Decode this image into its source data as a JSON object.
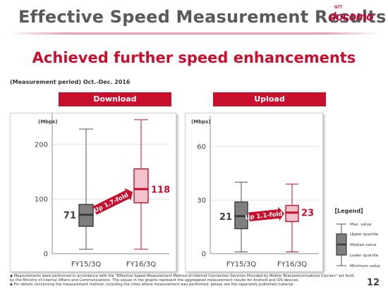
{
  "slide": {
    "title": "Effective Speed Measurement Results",
    "logo_text": "docomo",
    "logo_prefix": "NTT",
    "headline": "Achieved further speed enhancements",
    "period": "(Measurement period) Oct.-Dec. 2016",
    "page_number": "12",
    "footnotes": [
      "◆  Measurements were performed in accordance with the \"Effective Speed Measurement Method of Internet Connection Services Provided by Mobile Telecommunications Carriers\" set forth",
      "     by the Ministry of Internal Affairs and Communications. The values in the graphs represent the aggregated measurement results for Android and iOS devices.",
      "◆  For details concerning the measurement method, including the cities where measurement was performed, please see the separately published material."
    ]
  },
  "legend": {
    "title": "【Legend】",
    "items": [
      "Max. value",
      "Upper quartile",
      "Median value",
      "Lower quartile",
      "Minimum value"
    ]
  },
  "colors": {
    "accent": "#c8102e",
    "grey_box": "#7f7f7f",
    "pink_box": "#f4c2cc"
  },
  "chart_data": [
    {
      "type": "box",
      "title": "Download",
      "ylabel": "(Mbps)",
      "ylim": [
        0,
        250
      ],
      "yticks": [
        0,
        100,
        200
      ],
      "categories": [
        "FY15/3Q",
        "FY16/3Q"
      ],
      "boxes": [
        {
          "min": 8,
          "q1": 50,
          "median": 71,
          "q3": 90,
          "max": 228,
          "label": "71"
        },
        {
          "min": 8,
          "q1": 93,
          "median": 118,
          "q3": 155,
          "max": 245,
          "label": "118"
        }
      ],
      "annotation": "Up 1.7-fold"
    },
    {
      "type": "box",
      "title": "Upload",
      "ylabel": "(Mbps)",
      "ylim": [
        0,
        75
      ],
      "yticks": [
        0,
        30,
        60
      ],
      "categories": [
        "FY15/3Q",
        "FY16/3Q"
      ],
      "boxes": [
        {
          "min": 1,
          "q1": 14,
          "median": 21,
          "q3": 29,
          "max": 40,
          "label": "21"
        },
        {
          "min": 1,
          "q1": 18,
          "median": 23,
          "q3": 27,
          "max": 39,
          "label": "23"
        }
      ],
      "annotation": "Up 1.1-fold"
    }
  ]
}
